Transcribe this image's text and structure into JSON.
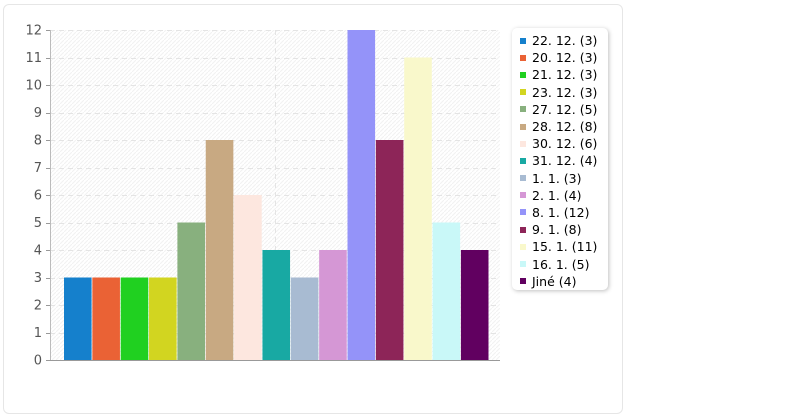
{
  "chart_data": {
    "type": "bar",
    "categories": [
      "22. 12.",
      "20. 12.",
      "21. 12.",
      "23. 12.",
      "27. 12.",
      "28. 12.",
      "30. 12.",
      "31. 12.",
      "1. 1.",
      "2. 1.",
      "8. 1.",
      "9. 1.",
      "15. 1.",
      "16. 1.",
      "Jiné"
    ],
    "values": [
      3,
      3,
      3,
      3,
      5,
      8,
      6,
      4,
      3,
      4,
      12,
      8,
      11,
      5,
      4
    ],
    "colors": [
      "#1580cc",
      "#ea6235",
      "#20d020",
      "#d2d520",
      "#88b07e",
      "#c8a982",
      "#fde7df",
      "#18a9a3",
      "#a8bbd2",
      "#d597d5",
      "#9493f9",
      "#8d2558",
      "#f9f8cb",
      "#c9f8f8",
      "#610060"
    ],
    "legend_labels": [
      "22. 12. (3)",
      "20. 12. (3)",
      "21. 12. (3)",
      "23. 12. (3)",
      "27. 12. (5)",
      "28. 12. (8)",
      "30. 12. (6)",
      "31. 12. (4)",
      "1. 1. (3)",
      "2. 1. (4)",
      "8. 1. (12)",
      "9. 1. (8)",
      "15. 1. (11)",
      "16. 1. (5)",
      "Jiné (4)"
    ],
    "yticks": [
      "0",
      "1",
      "2",
      "3",
      "4",
      "5",
      "6",
      "7",
      "8",
      "9",
      "10",
      "11",
      "12"
    ],
    "ylim": [
      0,
      12
    ],
    "grid": true,
    "legend_position": "right",
    "title": "",
    "xlabel": "",
    "ylabel": ""
  }
}
